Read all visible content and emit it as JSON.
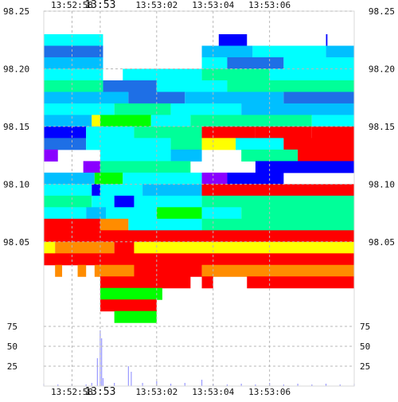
{
  "chart_data": {
    "type": "heatmap",
    "title": "",
    "description_free": true,
    "x_axis": {
      "tick_labels": [
        "13:52:58",
        "13:53",
        "13:53:02",
        "13:53:04",
        "13:53:06"
      ],
      "major_tick": "13:53",
      "range_seconds_from_first_label": [
        -2.0,
        9.0
      ],
      "labels_top": true,
      "labels_bottom": true
    },
    "price_axis": {
      "range": [
        98.025,
        98.25
      ],
      "tick_labels": [
        "98.25",
        "98.20",
        "98.15",
        "98.10",
        "98.05"
      ],
      "tick_values": [
        98.25,
        98.2,
        98.15,
        98.1,
        98.05
      ],
      "labels_left": true,
      "labels_right": true
    },
    "volume_axis": {
      "range": [
        0,
        100
      ],
      "tick_labels": [
        "75",
        "50",
        "25"
      ],
      "tick_values": [
        75,
        50,
        25
      ],
      "labels_left": true,
      "labels_right": true
    },
    "grid": true,
    "colors": {
      "red": "#ff0000",
      "orange": "#ff8c00",
      "yellow": "#ffff00",
      "green": "#00ff00",
      "aquamarine": "#00ff99",
      "cyan": "#00ffff",
      "deepskyblue": "#00bfff",
      "blue": "#1e6fe6",
      "navy": "#0000ff",
      "violet": "#8a00ff",
      "volume": "#9a9aff"
    },
    "heat_rows": [
      {
        "p": 98.225,
        "segments": [
          [
            -2.0,
            0.1,
            "cyan"
          ],
          [
            0.1,
            4.2,
            "empty"
          ],
          [
            4.2,
            5.2,
            "navy"
          ],
          [
            5.2,
            8.0,
            "empty"
          ],
          [
            8.0,
            8.05,
            "navy"
          ]
        ]
      },
      {
        "p": 98.215,
        "segments": [
          [
            -2.0,
            0.1,
            "blue"
          ],
          [
            0.1,
            3.6,
            "empty"
          ],
          [
            3.6,
            5.4,
            "deepskyblue"
          ],
          [
            5.4,
            8.0,
            "cyan"
          ],
          [
            8.0,
            9.0,
            "deepskyblue"
          ]
        ]
      },
      {
        "p": 98.205,
        "segments": [
          [
            -2.0,
            0.1,
            "deepskyblue"
          ],
          [
            0.1,
            3.6,
            "empty"
          ],
          [
            3.6,
            4.5,
            "cyan"
          ],
          [
            4.5,
            6.5,
            "blue"
          ],
          [
            6.5,
            9.0,
            "cyan"
          ]
        ]
      },
      {
        "p": 98.195,
        "segments": [
          [
            -2.0,
            0.1,
            "cyan"
          ],
          [
            0.1,
            0.8,
            "empty"
          ],
          [
            0.8,
            3.6,
            "cyan"
          ],
          [
            3.6,
            6.0,
            "aquamarine"
          ],
          [
            6.0,
            9.0,
            "cyan"
          ]
        ]
      },
      {
        "p": 98.185,
        "segments": [
          [
            -2.0,
            0.1,
            "aquamarine"
          ],
          [
            0.1,
            2.0,
            "blue"
          ],
          [
            2.0,
            4.5,
            "cyan"
          ],
          [
            4.5,
            9.0,
            "aquamarine"
          ]
        ]
      },
      {
        "p": 98.175,
        "segments": [
          [
            -2.0,
            1.0,
            "deepskyblue"
          ],
          [
            1.0,
            3.0,
            "blue"
          ],
          [
            3.0,
            6.5,
            "deepskyblue"
          ],
          [
            6.5,
            9.0,
            "blue"
          ]
        ]
      },
      {
        "p": 98.165,
        "segments": [
          [
            -2.0,
            0.5,
            "cyan"
          ],
          [
            0.5,
            2.5,
            "aquamarine"
          ],
          [
            2.5,
            5.0,
            "cyan"
          ],
          [
            5.0,
            9.0,
            "deepskyblue"
          ]
        ]
      },
      {
        "p": 98.155,
        "segments": [
          [
            -2.0,
            -0.3,
            "deepskyblue"
          ],
          [
            -0.3,
            0.0,
            "yellow"
          ],
          [
            0.0,
            1.8,
            "green"
          ],
          [
            1.8,
            3.2,
            "cyan"
          ],
          [
            3.2,
            7.5,
            "aquamarine"
          ],
          [
            7.5,
            9.0,
            "cyan"
          ]
        ]
      },
      {
        "p": 98.145,
        "segments": [
          [
            -2.0,
            -0.5,
            "navy"
          ],
          [
            -0.5,
            1.2,
            "cyan"
          ],
          [
            1.2,
            3.6,
            "aquamarine"
          ],
          [
            3.6,
            5.5,
            "red"
          ],
          [
            5.5,
            7.5,
            "red"
          ],
          [
            7.5,
            9.0,
            "red"
          ]
        ]
      },
      {
        "p": 98.135,
        "segments": [
          [
            -2.0,
            -0.5,
            "blue"
          ],
          [
            -0.5,
            2.5,
            "cyan"
          ],
          [
            2.5,
            3.6,
            "aquamarine"
          ],
          [
            3.6,
            4.8,
            "yellow"
          ],
          [
            4.8,
            6.5,
            "cyan"
          ],
          [
            6.5,
            9.0,
            "red"
          ]
        ]
      },
      {
        "p": 98.125,
        "segments": [
          [
            -2.0,
            -1.5,
            "violet"
          ],
          [
            -1.5,
            0.0,
            "empty"
          ],
          [
            0.0,
            2.5,
            "cyan"
          ],
          [
            2.5,
            3.6,
            "deepskyblue"
          ],
          [
            3.6,
            5.0,
            "empty"
          ],
          [
            5.0,
            7.0,
            "aquamarine"
          ],
          [
            7.0,
            9.0,
            "red"
          ]
        ]
      },
      {
        "p": 98.115,
        "segments": [
          [
            -2.0,
            -0.6,
            "empty"
          ],
          [
            -0.6,
            0.0,
            "violet"
          ],
          [
            0.0,
            3.2,
            "aquamarine"
          ],
          [
            3.2,
            3.6,
            "empty"
          ],
          [
            3.6,
            5.5,
            "empty"
          ],
          [
            5.5,
            9.0,
            "navy"
          ]
        ]
      },
      {
        "p": 98.105,
        "segments": [
          [
            -2.0,
            -0.2,
            "deepskyblue"
          ],
          [
            -0.2,
            0.8,
            "green"
          ],
          [
            0.8,
            3.6,
            "cyan"
          ],
          [
            3.6,
            4.5,
            "violet"
          ],
          [
            4.5,
            6.5,
            "navy"
          ],
          [
            6.5,
            9.0,
            "empty"
          ]
        ]
      },
      {
        "p": 98.095,
        "segments": [
          [
            -2.0,
            -0.3,
            "cyan"
          ],
          [
            -0.3,
            0.0,
            "navy"
          ],
          [
            0.0,
            1.5,
            "cyan"
          ],
          [
            1.5,
            3.6,
            "deepskyblue"
          ],
          [
            3.6,
            9.0,
            "red"
          ]
        ]
      },
      {
        "p": 98.085,
        "segments": [
          [
            -2.0,
            -0.3,
            "aquamarine"
          ],
          [
            -0.3,
            0.5,
            "cyan"
          ],
          [
            0.5,
            1.2,
            "navy"
          ],
          [
            1.2,
            3.6,
            "cyan"
          ],
          [
            3.6,
            9.0,
            "aquamarine"
          ]
        ]
      },
      {
        "p": 98.075,
        "segments": [
          [
            -2.0,
            -0.5,
            "cyan"
          ],
          [
            -0.5,
            0.2,
            "deepskyblue"
          ],
          [
            0.2,
            2.0,
            "cyan"
          ],
          [
            2.0,
            3.6,
            "green"
          ],
          [
            3.6,
            5.0,
            "cyan"
          ],
          [
            5.0,
            9.0,
            "aquamarine"
          ]
        ]
      },
      {
        "p": 98.065,
        "segments": [
          [
            -2.0,
            0.0,
            "red"
          ],
          [
            0.0,
            1.0,
            "orange"
          ],
          [
            1.0,
            3.6,
            "cyan"
          ],
          [
            3.6,
            9.0,
            "aquamarine"
          ]
        ]
      },
      {
        "p": 98.055,
        "segments": [
          [
            -2.0,
            9.0,
            "red"
          ]
        ]
      },
      {
        "p": 98.045,
        "segments": [
          [
            -2.0,
            -1.6,
            "yellow"
          ],
          [
            -1.6,
            0.5,
            "orange"
          ],
          [
            0.5,
            1.2,
            "red"
          ],
          [
            1.2,
            9.0,
            "yellow"
          ]
        ]
      },
      {
        "p": 98.035,
        "segments": [
          [
            -2.0,
            9.0,
            "red"
          ]
        ]
      },
      {
        "p": 98.025,
        "segments": [
          [
            -1.6,
            -1.35,
            "orange"
          ],
          [
            -0.8,
            -0.5,
            "orange"
          ],
          [
            -0.2,
            1.2,
            "orange"
          ],
          [
            1.2,
            3.6,
            "red"
          ],
          [
            3.6,
            9.0,
            "orange"
          ]
        ]
      }
    ],
    "lower_rows": [
      {
        "y": 98.015,
        "segments": [
          [
            0.0,
            3.2,
            "red"
          ],
          [
            3.6,
            4.0,
            "red"
          ],
          [
            5.2,
            9.0,
            "red"
          ]
        ]
      },
      {
        "y": 98.005,
        "segments": [
          [
            0.0,
            2.2,
            "green"
          ]
        ]
      },
      {
        "y": 97.995,
        "segments": [
          [
            0.0,
            2.0,
            "red"
          ]
        ]
      },
      {
        "y": 97.985,
        "segments": [
          [
            0.5,
            2.0,
            "green"
          ]
        ]
      }
    ],
    "volume_series": [
      [
        -2.0,
        3
      ],
      [
        -1.5,
        2
      ],
      [
        -1.0,
        3
      ],
      [
        -0.5,
        2
      ],
      [
        -0.3,
        4
      ],
      [
        -0.1,
        35
      ],
      [
        0.0,
        70
      ],
      [
        0.05,
        60
      ],
      [
        0.1,
        10
      ],
      [
        0.5,
        4
      ],
      [
        1.0,
        25
      ],
      [
        1.1,
        18
      ],
      [
        1.5,
        4
      ],
      [
        2.0,
        6
      ],
      [
        2.5,
        3
      ],
      [
        3.0,
        4
      ],
      [
        3.6,
        8
      ],
      [
        4.0,
        3
      ],
      [
        4.5,
        2
      ],
      [
        5.0,
        3
      ],
      [
        5.5,
        2
      ],
      [
        6.0,
        4
      ],
      [
        6.5,
        2
      ],
      [
        7.0,
        3
      ],
      [
        7.5,
        2
      ],
      [
        8.0,
        3
      ],
      [
        8.5,
        2
      ],
      [
        9.0,
        3
      ]
    ]
  }
}
